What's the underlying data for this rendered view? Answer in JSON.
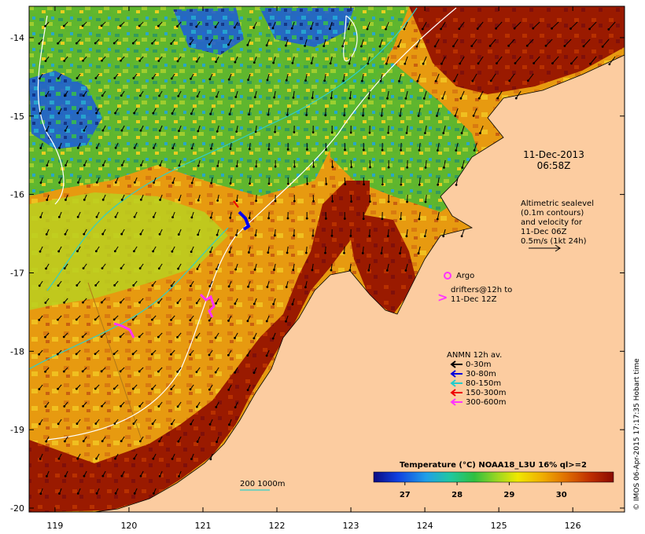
{
  "map": {
    "lon_ticks": [
      "119",
      "120",
      "121",
      "122",
      "123",
      "124",
      "125",
      "126"
    ],
    "lat_ticks": [
      "-14",
      "-15",
      "-16",
      "-17",
      "-18",
      "-19",
      "-20"
    ],
    "lon_range": [
      118.65,
      126.7
    ],
    "lat_range": [
      -20.05,
      -13.6
    ]
  },
  "annotations": {
    "date": "11-Dec-2013",
    "time": "06:58Z",
    "altimetry_lines": [
      "Altimetric sealevel",
      "(0.1m contours)",
      "and velocity for",
      "11-Dec 06Z",
      "0.5m/s (1kt 24h)"
    ],
    "argo_label": "Argo",
    "drifter_lines": [
      "drifters@12h to",
      "11-Dec 12Z"
    ],
    "contour_label": "200  1000m"
  },
  "legend": {
    "title": "ANMN 12h av.",
    "items": [
      {
        "label": "0-30m",
        "color": "#000000"
      },
      {
        "label": "30-80m",
        "color": "#0000dd"
      },
      {
        "label": "80-150m",
        "color": "#22cccc"
      },
      {
        "label": "150-300m",
        "color": "#ee0000"
      },
      {
        "label": "300-600m",
        "color": "#ff33ff"
      }
    ]
  },
  "colorbar": {
    "title": "Temperature (°C) NOAA18_L3U 16% ql>=2",
    "ticks": [
      "27",
      "28",
      "29",
      "30"
    ],
    "tick_values": [
      27,
      28,
      29,
      30
    ],
    "range": [
      26.4,
      31.0
    ]
  },
  "credit": "© IMOS 06-Apr-2015 17:17:35 Hobart time"
}
